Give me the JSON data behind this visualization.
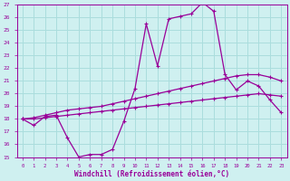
{
  "xlabel": "Windchill (Refroidissement éolien,°C)",
  "background_color": "#cff0f0",
  "grid_color": "#aadddd",
  "line_color": "#990099",
  "xlim": [
    -0.5,
    23.5
  ],
  "ylim": [
    15,
    27
  ],
  "yticks": [
    15,
    16,
    17,
    18,
    19,
    20,
    21,
    22,
    23,
    24,
    25,
    26,
    27
  ],
  "xticks": [
    0,
    1,
    2,
    3,
    4,
    5,
    6,
    7,
    8,
    9,
    10,
    11,
    12,
    13,
    14,
    15,
    16,
    17,
    18,
    19,
    20,
    21,
    22,
    23
  ],
  "line1_x": [
    0,
    1,
    2,
    3,
    4,
    5,
    6,
    7,
    8,
    9,
    10,
    11,
    12,
    13,
    14,
    15,
    16,
    17,
    18,
    19,
    20,
    21,
    22,
    23
  ],
  "line1_y": [
    18.0,
    17.5,
    18.2,
    18.3,
    16.5,
    15.0,
    15.2,
    15.2,
    15.6,
    17.8,
    20.4,
    25.5,
    22.2,
    25.9,
    26.1,
    26.3,
    27.2,
    26.5,
    21.5,
    20.3,
    21.0,
    20.6,
    19.5,
    18.5
  ],
  "line2_x": [
    0,
    1,
    2,
    3,
    4,
    5,
    6,
    7,
    8,
    9,
    10,
    11,
    12,
    13,
    14,
    15,
    16,
    17,
    18,
    19,
    20,
    21,
    22,
    23
  ],
  "line2_y": [
    18.0,
    18.1,
    18.3,
    18.5,
    18.7,
    18.8,
    18.9,
    19.0,
    19.2,
    19.4,
    19.6,
    19.8,
    20.0,
    20.2,
    20.4,
    20.6,
    20.8,
    21.0,
    21.2,
    21.4,
    21.5,
    21.5,
    21.3,
    21.0
  ],
  "line3_x": [
    0,
    1,
    2,
    3,
    4,
    5,
    6,
    7,
    8,
    9,
    10,
    11,
    12,
    13,
    14,
    15,
    16,
    17,
    18,
    19,
    20,
    21,
    22,
    23
  ],
  "line3_y": [
    18.0,
    18.0,
    18.1,
    18.2,
    18.3,
    18.4,
    18.5,
    18.6,
    18.7,
    18.8,
    18.9,
    19.0,
    19.1,
    19.2,
    19.3,
    19.4,
    19.5,
    19.6,
    19.7,
    19.8,
    19.9,
    20.0,
    19.9,
    19.8
  ]
}
